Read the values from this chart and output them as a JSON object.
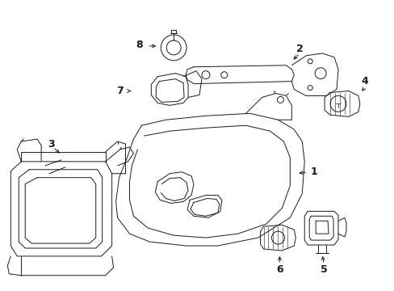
{
  "bg_color": "#ffffff",
  "line_color": "#1a1a1a",
  "fig_width": 4.89,
  "fig_height": 3.6,
  "dpi": 100,
  "label_fontsize": 9,
  "lw": 0.7
}
